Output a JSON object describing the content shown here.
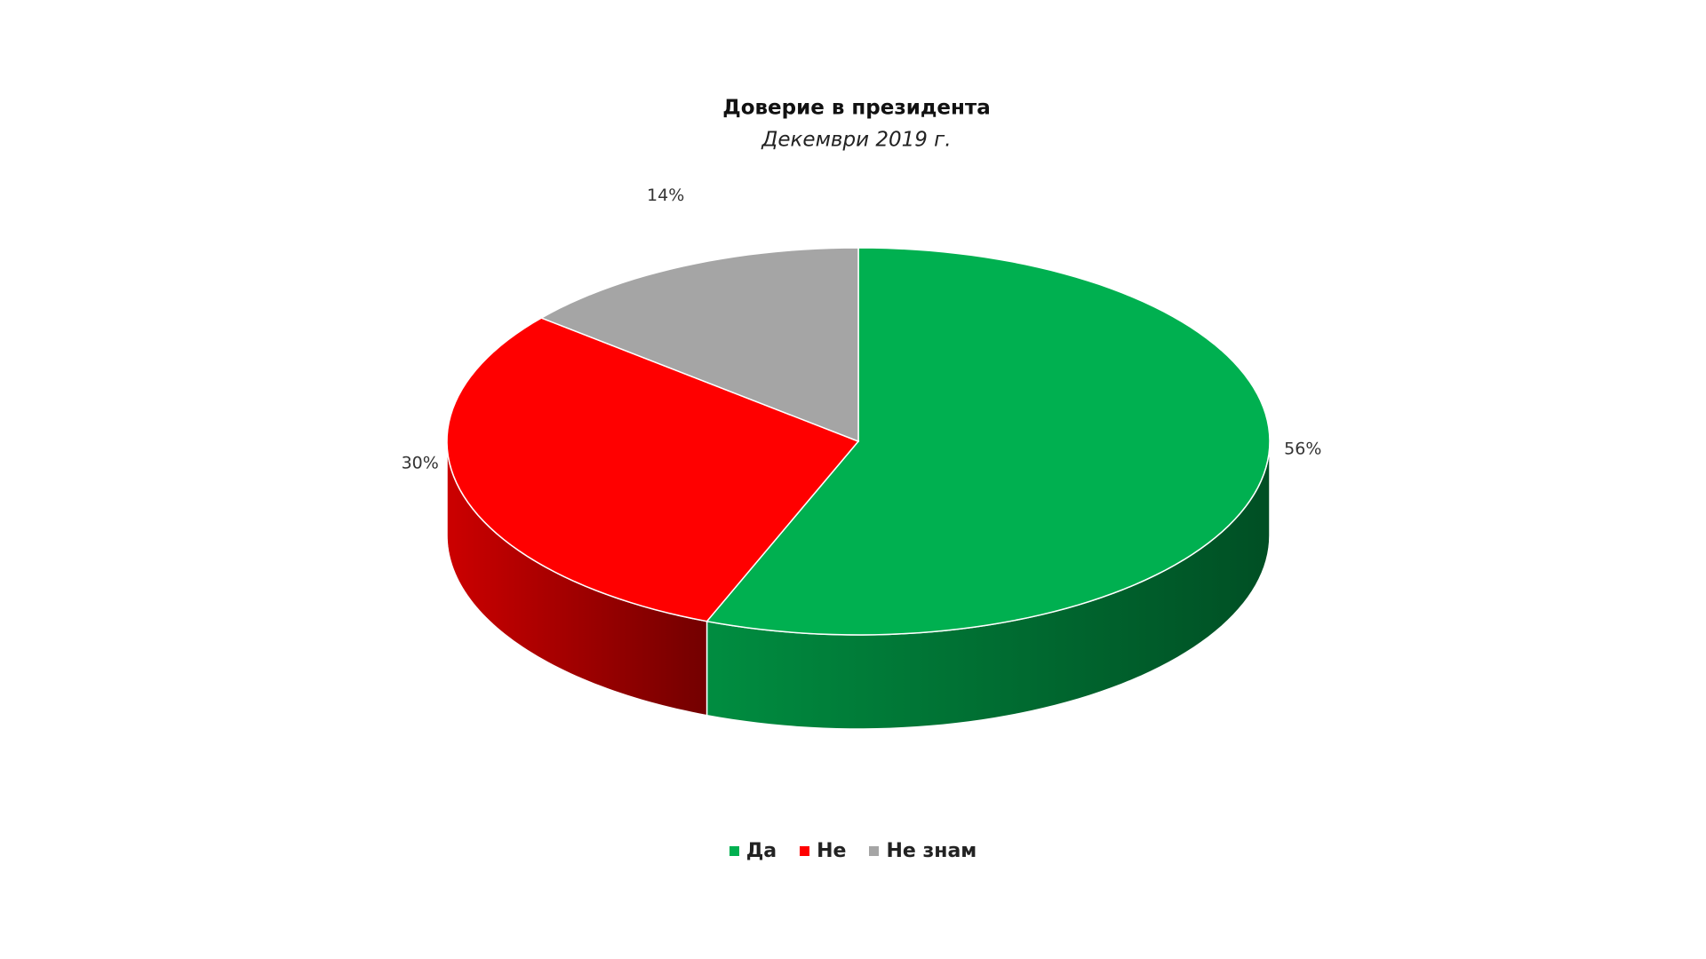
{
  "chart_data": {
    "type": "pie",
    "title": "Доверие в президента",
    "subtitle": "Декември 2019 г.",
    "categories": [
      "Да",
      "Не",
      "Не знам"
    ],
    "values": [
      56,
      30,
      14
    ],
    "value_labels": [
      "56%",
      "30%",
      "14%"
    ],
    "colors": [
      "#00b050",
      "#ff0000",
      "#a5a5a5"
    ]
  }
}
